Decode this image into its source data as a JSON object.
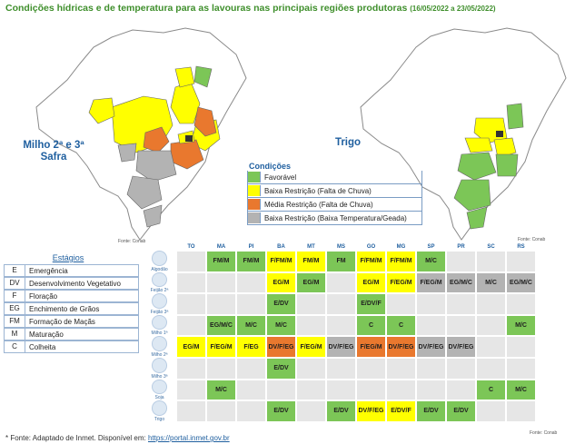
{
  "header": {
    "title": "Condições hídricas e de temperatura para as lavouras nas principais regiões produtoras",
    "period": "(16/05/2022 a 23/05/2022)"
  },
  "maps": {
    "left_label_line1": "Milho 2ª e 3ª",
    "left_label_line2": "Safra",
    "right_label": "Trigo",
    "left_source": "Fonte: Conab",
    "right_source": "Fonte: Conab"
  },
  "legend": {
    "title": "Condições",
    "items": [
      {
        "label": "Favorável",
        "color": "#7cc657"
      },
      {
        "label": "Baixa Restrição (Falta de Chuva)",
        "color": "#ffff00"
      },
      {
        "label": "Média Restrição (Falta de Chuva)",
        "color": "#e9782e"
      },
      {
        "label": "Baixa Restrição (Baixa Temperatura/Geada)",
        "color": "#b3b3b3"
      }
    ]
  },
  "stages": {
    "title": "Estágios",
    "items": [
      {
        "code": "E",
        "desc": "Emergência"
      },
      {
        "code": "DV",
        "desc": "Desenvolvimento Vegetativo"
      },
      {
        "code": "F",
        "desc": "Floração"
      },
      {
        "code": "EG",
        "desc": "Enchimento de Grãos"
      },
      {
        "code": "FM",
        "desc": "Formação de Maçãs"
      },
      {
        "code": "M",
        "desc": "Maturação"
      },
      {
        "code": "C",
        "desc": "Colheita"
      }
    ]
  },
  "table": {
    "columns": [
      "TO",
      "MA",
      "PI",
      "BA",
      "MT",
      "MS",
      "GO",
      "MG",
      "SP",
      "PR",
      "SC",
      "RS"
    ],
    "crops": [
      "Algodão",
      "Feijão 2ª",
      "Feijão 3ª",
      "Milho 1ª",
      "Milho 2ª",
      "Milho 3ª",
      "Soja",
      "Trigo"
    ],
    "rows": [
      [
        "",
        "FM/M",
        "FM/M",
        "F/FM/M",
        "FM/M",
        "FM",
        "F/FM/M",
        "F/FM/M",
        "M/C",
        "",
        "",
        ""
      ],
      [
        "",
        "",
        "",
        "EG/M",
        "EG/M",
        "",
        "EG/M",
        "F/EG/M",
        "F/EG/M",
        "EG/M/C",
        "M/C",
        "EG/M/C"
      ],
      [
        "",
        "",
        "",
        "E/DV",
        "",
        "",
        "E/DV/F",
        "",
        "",
        "",
        "",
        ""
      ],
      [
        "",
        "EG/M/C",
        "M/C",
        "M/C",
        "",
        "",
        "C",
        "C",
        "",
        "",
        "",
        "M/C"
      ],
      [
        "EG/M",
        "F/EG/M",
        "F/EG",
        "DV/F/EG",
        "F/EG/M",
        "DV/F/EG",
        "F/EG/M",
        "DV/F/EG",
        "DV/F/EG",
        "DV/F/EG",
        "",
        ""
      ],
      [
        "",
        "",
        "",
        "E/DV",
        "",
        "",
        "",
        "",
        "",
        "",
        "",
        ""
      ],
      [
        "",
        "M/C",
        "",
        "",
        "",
        "",
        "",
        "",
        "",
        "",
        "C",
        "M/C"
      ],
      [
        "",
        "",
        "",
        "E/DV",
        "",
        "E/DV",
        "DV/F/EG",
        "E/DV/F",
        "E/DV",
        "E/DV",
        "",
        ""
      ]
    ],
    "status": [
      [
        "",
        "fav",
        "fav",
        "low",
        "low",
        "fav",
        "low",
        "low",
        "fav",
        "",
        "",
        ""
      ],
      [
        "",
        "",
        "",
        "low",
        "fav",
        "",
        "low",
        "low",
        "grey",
        "grey",
        "grey",
        "grey"
      ],
      [
        "",
        "",
        "",
        "fav",
        "",
        "",
        "fav",
        "",
        "",
        "",
        "",
        ""
      ],
      [
        "",
        "fav",
        "fav",
        "fav",
        "",
        "",
        "fav",
        "fav",
        "",
        "",
        "",
        "fav"
      ],
      [
        "low",
        "low",
        "low",
        "med",
        "low",
        "grey",
        "med",
        "med",
        "grey",
        "grey",
        "",
        ""
      ],
      [
        "",
        "",
        "",
        "fav",
        "",
        "",
        "",
        "",
        "",
        "",
        "",
        ""
      ],
      [
        "",
        "fav",
        "",
        "",
        "",
        "",
        "",
        "",
        "",
        "",
        "fav",
        "fav"
      ],
      [
        "",
        "",
        "",
        "fav",
        "",
        "fav",
        "low",
        "low",
        "fav",
        "fav",
        "",
        ""
      ]
    ],
    "source": "Fonte: Conab"
  },
  "footnote": {
    "text": "* Fonte: Adaptado de Inmet. Disponível em: ",
    "link": "https://portal.inmet.gov.br"
  }
}
